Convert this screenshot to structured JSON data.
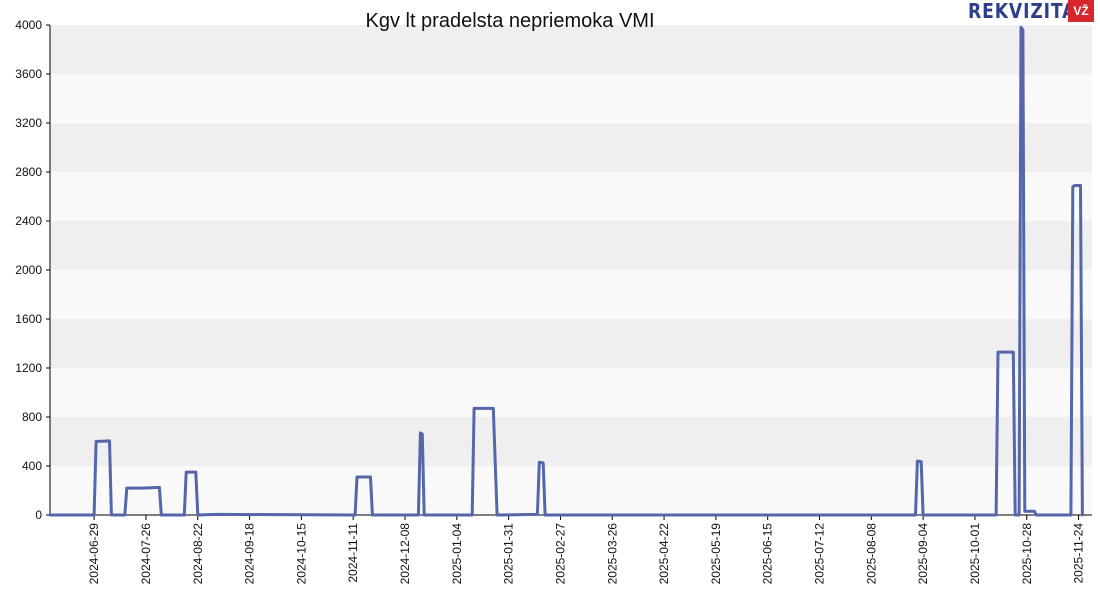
{
  "brand": {
    "name": "REKVIZITAI",
    "badge": "VŽ"
  },
  "colors": {
    "line": "#5566aa",
    "band_light": "#f9f9f9",
    "band_dark": "#efefef",
    "axis": "#000000"
  },
  "chart_data": {
    "type": "line",
    "title": "Kgv lt pradelsta nepriemoka VMI",
    "xlabel": "",
    "ylabel": "",
    "ylim": [
      0,
      4000
    ],
    "yticks": [
      0,
      400,
      800,
      1200,
      1600,
      2000,
      2400,
      2800,
      3200,
      3600,
      4000
    ],
    "xlim": [
      "2024-06-06",
      "2025-12-01"
    ],
    "xticks": [
      "2024-06-29",
      "2024-07-26",
      "2024-08-22",
      "2024-09-18",
      "2024-10-15",
      "2024-11-11",
      "2024-12-08",
      "2025-01-04",
      "2025-01-31",
      "2025-02-27",
      "2025-03-26",
      "2025-04-22",
      "2025-05-19",
      "2025-06-15",
      "2025-07-12",
      "2025-08-08",
      "2025-09-04",
      "2025-10-01",
      "2025-10-28",
      "2025-11-24"
    ],
    "grid": "horizontal bands",
    "legend": "none",
    "series": [
      {
        "points": [
          [
            "2024-06-06",
            0
          ],
          [
            "2024-06-29",
            0
          ],
          [
            "2024-06-30",
            600
          ],
          [
            "2024-07-07",
            605
          ],
          [
            "2024-07-08",
            0
          ],
          [
            "2024-07-15",
            0
          ],
          [
            "2024-07-16",
            220
          ],
          [
            "2024-07-24",
            220
          ],
          [
            "2024-08-02",
            225
          ],
          [
            "2024-08-03",
            0
          ],
          [
            "2024-08-15",
            0
          ],
          [
            "2024-08-16",
            350
          ],
          [
            "2024-08-21",
            350
          ],
          [
            "2024-08-22",
            0
          ],
          [
            "2024-09-01",
            5
          ],
          [
            "2024-11-12",
            0
          ],
          [
            "2024-11-13",
            310
          ],
          [
            "2024-11-20",
            310
          ],
          [
            "2024-11-21",
            0
          ],
          [
            "2024-12-15",
            0
          ],
          [
            "2024-12-16",
            670
          ],
          [
            "2024-12-17",
            660
          ],
          [
            "2024-12-18",
            0
          ],
          [
            "2025-01-12",
            0
          ],
          [
            "2025-01-13",
            870
          ],
          [
            "2025-01-23",
            870
          ],
          [
            "2025-01-25",
            0
          ],
          [
            "2025-02-15",
            5
          ],
          [
            "2025-02-16",
            430
          ],
          [
            "2025-02-18",
            425
          ],
          [
            "2025-02-19",
            0
          ],
          [
            "2025-08-31",
            0
          ],
          [
            "2025-09-01",
            440
          ],
          [
            "2025-09-03",
            435
          ],
          [
            "2025-09-04",
            0
          ],
          [
            "2025-10-12",
            0
          ],
          [
            "2025-10-13",
            1330
          ],
          [
            "2025-10-21",
            1330
          ],
          [
            "2025-10-22",
            0
          ],
          [
            "2025-10-24",
            0
          ],
          [
            "2025-10-25",
            3980
          ],
          [
            "2025-10-26",
            3960
          ],
          [
            "2025-10-27",
            30
          ],
          [
            "2025-11-01",
            30
          ],
          [
            "2025-11-02",
            0
          ],
          [
            "2025-11-20",
            0
          ],
          [
            "2025-11-21",
            2680
          ],
          [
            "2025-11-22",
            2690
          ],
          [
            "2025-11-25",
            2690
          ],
          [
            "2025-11-26",
            0
          ]
        ]
      }
    ]
  }
}
